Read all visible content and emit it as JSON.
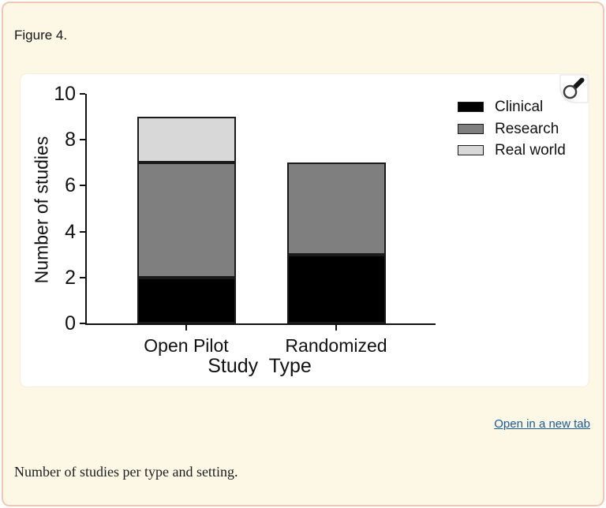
{
  "page": {
    "figure_label": "Figure 4.",
    "link_label": "Open in a new tab",
    "caption": "Number of studies per type and setting.",
    "magnifier_icon": "magnifier",
    "colors": {
      "card_bg": "#fdf8e6",
      "card_border": "#f0c8b4",
      "link": "#1a5a96",
      "axis": "#111111"
    }
  },
  "chart_data": {
    "type": "bar",
    "stacked": true,
    "categories": [
      "Open Pilot",
      "Randomized"
    ],
    "series": [
      {
        "name": "Clinical",
        "color": "#000000",
        "values": [
          2,
          3
        ]
      },
      {
        "name": "Research",
        "color": "#7f7f7f",
        "values": [
          5,
          4
        ]
      },
      {
        "name": "Real world",
        "color": "#d8d8d8",
        "values": [
          2,
          0
        ]
      }
    ],
    "totals": [
      9,
      7
    ],
    "title": "",
    "xlabel": "Study  Type",
    "ylabel": "Number of studies",
    "ylim": [
      0,
      10
    ],
    "yticks": [
      0,
      2,
      4,
      6,
      8,
      10
    ],
    "grid": false,
    "legend_position": "upper-right"
  }
}
